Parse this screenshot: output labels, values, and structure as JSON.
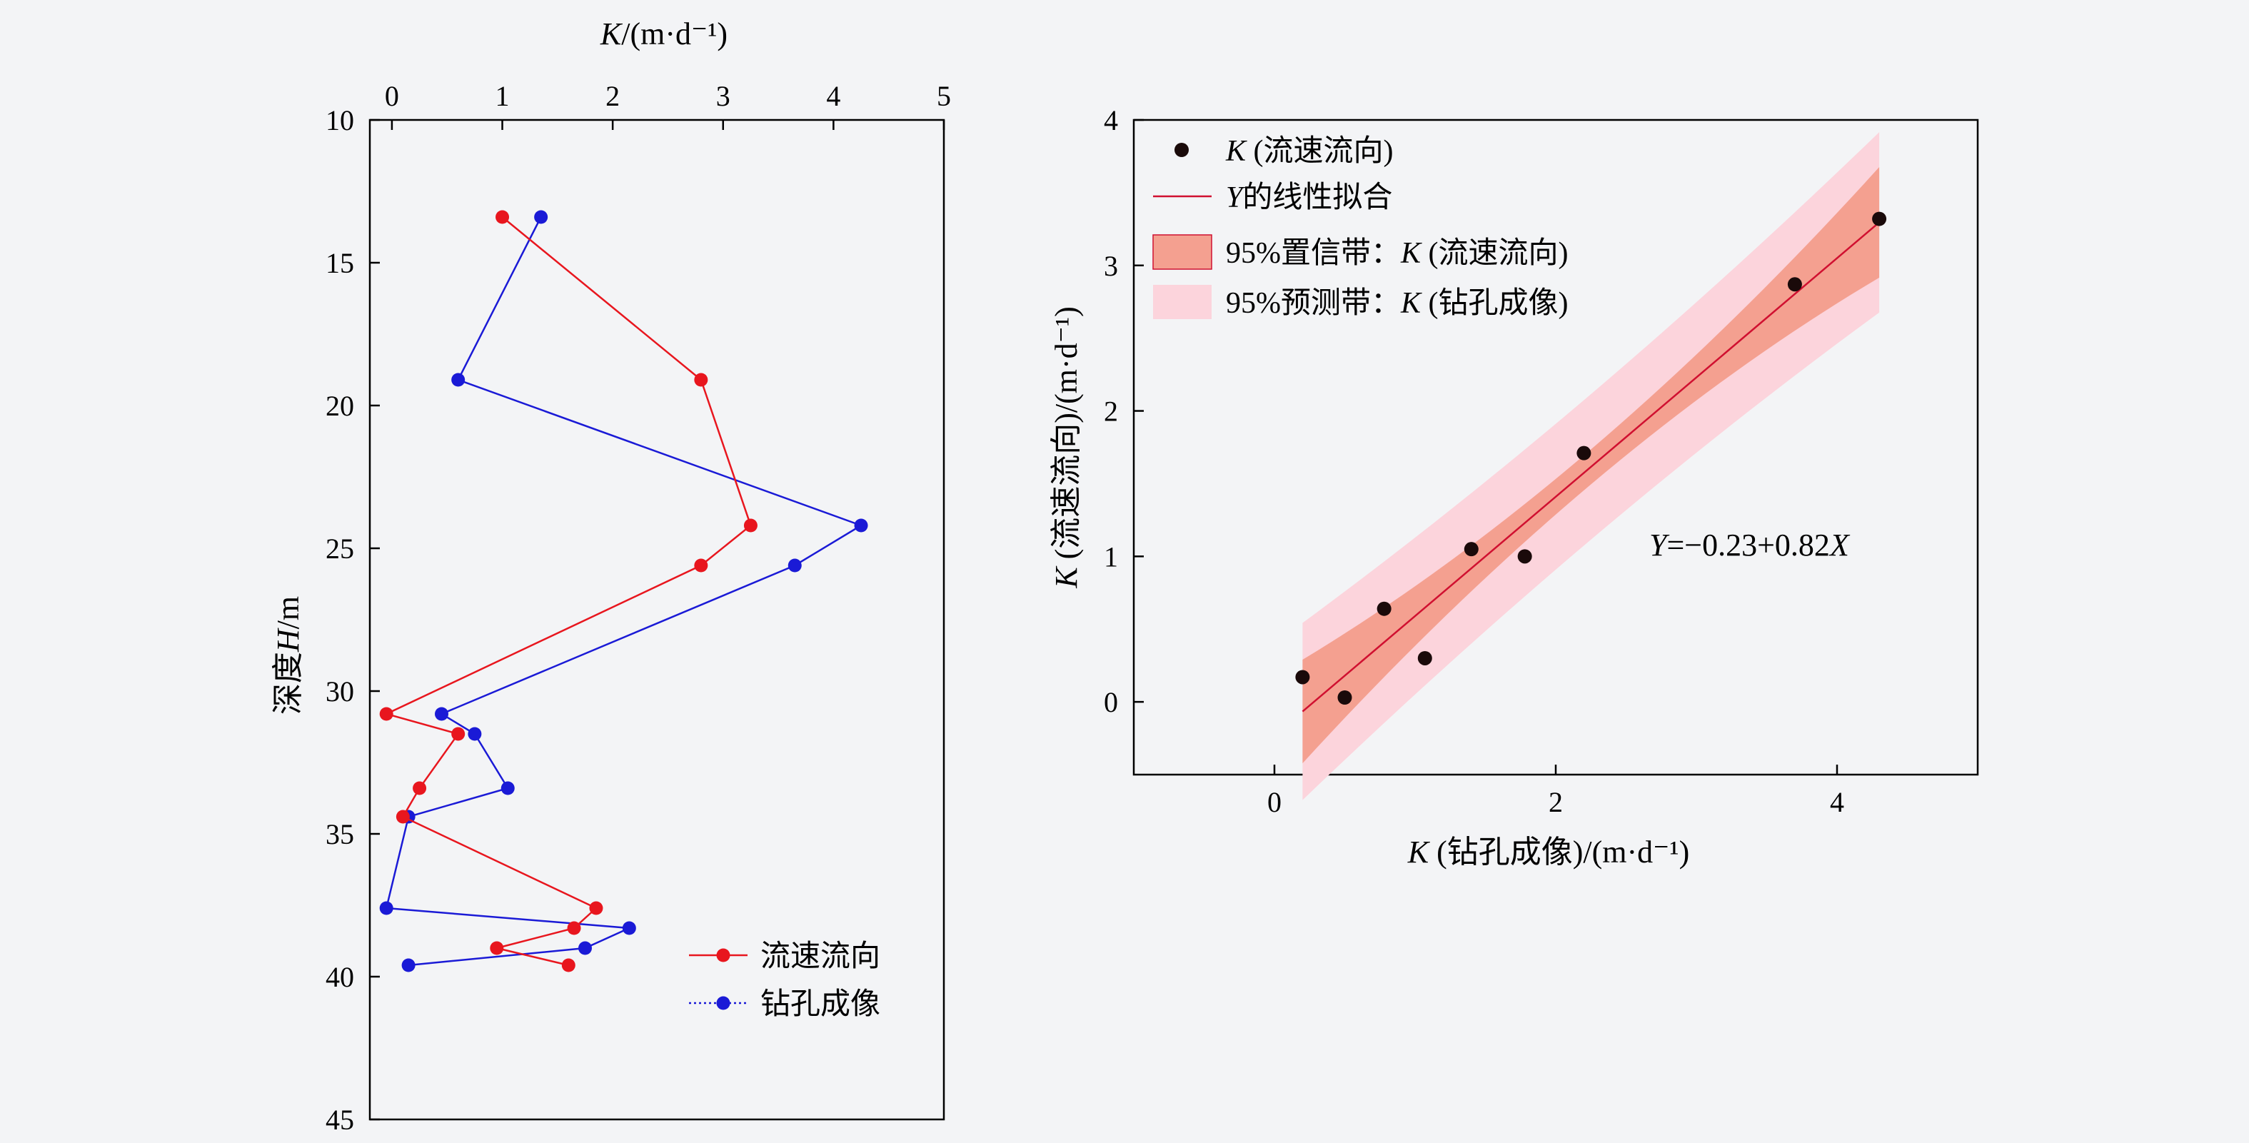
{
  "chart_data": [
    {
      "type": "line",
      "xlabel": "K/(m·d⁻¹)",
      "ylabel": "深度H/m",
      "x_axis_position": "top",
      "y_axis_inverted": true,
      "xlim": [
        -0.2,
        5
      ],
      "ylim": [
        10,
        45
      ],
      "xticks": [
        "0",
        "1",
        "2",
        "3",
        "4",
        "5"
      ],
      "yticks": [
        "10",
        "15",
        "20",
        "25",
        "30",
        "35",
        "40",
        "45"
      ],
      "grid": false,
      "legend_position": "bottom-right",
      "series": [
        {
          "name": "流速流向",
          "color": "#e8161e",
          "points": [
            {
              "k": 1.0,
              "depth": 13.4
            },
            {
              "k": 2.8,
              "depth": 19.1
            },
            {
              "k": 3.25,
              "depth": 24.2
            },
            {
              "k": 2.8,
              "depth": 25.6
            },
            {
              "k": -0.05,
              "depth": 30.8
            },
            {
              "k": 0.6,
              "depth": 31.5
            },
            {
              "k": 0.25,
              "depth": 33.4
            },
            {
              "k": 0.1,
              "depth": 34.4
            },
            {
              "k": 1.85,
              "depth": 37.6
            },
            {
              "k": 1.65,
              "depth": 38.3
            },
            {
              "k": 0.95,
              "depth": 39.0
            },
            {
              "k": 1.6,
              "depth": 39.6
            }
          ]
        },
        {
          "name": "钻孔成像",
          "color": "#1a1ad6",
          "points": [
            {
              "k": 1.35,
              "depth": 13.4
            },
            {
              "k": 0.6,
              "depth": 19.1
            },
            {
              "k": 4.25,
              "depth": 24.2
            },
            {
              "k": 3.65,
              "depth": 25.6
            },
            {
              "k": 0.45,
              "depth": 30.8
            },
            {
              "k": 0.75,
              "depth": 31.5
            },
            {
              "k": 1.05,
              "depth": 33.4
            },
            {
              "k": 0.15,
              "depth": 34.4
            },
            {
              "k": -0.05,
              "depth": 37.6
            },
            {
              "k": 2.15,
              "depth": 38.3
            },
            {
              "k": 1.75,
              "depth": 39.0
            },
            {
              "k": 0.15,
              "depth": 39.6
            }
          ]
        }
      ]
    },
    {
      "type": "scatter",
      "xlabel": "K (钻孔成像)/(m·d⁻¹)",
      "ylabel": "K (流速流向)/(m·d⁻¹)",
      "xlim": [
        -1,
        5
      ],
      "ylim": [
        -0.5,
        4
      ],
      "xticks": [
        "0",
        "2",
        "4"
      ],
      "yticks": [
        "0",
        "1",
        "2",
        "3",
        "4"
      ],
      "grid": false,
      "legend_position": "top-left",
      "equation": "Y=−0.23+0.82X",
      "fit": {
        "intercept": -0.23,
        "slope": 0.82,
        "x_range": [
          0.2,
          4.3
        ],
        "color": "#d01030"
      },
      "confidence_band": {
        "color": "#f4a090",
        "halfwidth_center": 0.12,
        "halfwidth_edge": 0.38,
        "x_center": 2.2
      },
      "prediction_band": {
        "color": "#fcd4dc",
        "halfwidth_center": 0.5,
        "halfwidth_edge": 0.62,
        "x_center": 2.2
      },
      "points_color": "#1a0a0a",
      "points": [
        {
          "x": 0.2,
          "y": 0.17
        },
        {
          "x": 0.5,
          "y": 0.03
        },
        {
          "x": 0.78,
          "y": 0.64
        },
        {
          "x": 1.07,
          "y": 0.3
        },
        {
          "x": 1.4,
          "y": 1.05
        },
        {
          "x": 1.78,
          "y": 1.0
        },
        {
          "x": 2.2,
          "y": 1.71
        },
        {
          "x": 3.7,
          "y": 2.87
        },
        {
          "x": 4.3,
          "y": 3.32
        }
      ],
      "legend": [
        {
          "label": "K (流速流向)",
          "kind": "marker"
        },
        {
          "label": "Y的线性拟合",
          "kind": "line"
        },
        {
          "label": "95%置信带：K (流速流向)",
          "kind": "conf-band"
        },
        {
          "label": "95%预测带：K (钻孔成像)",
          "kind": "pred-band"
        }
      ]
    }
  ]
}
